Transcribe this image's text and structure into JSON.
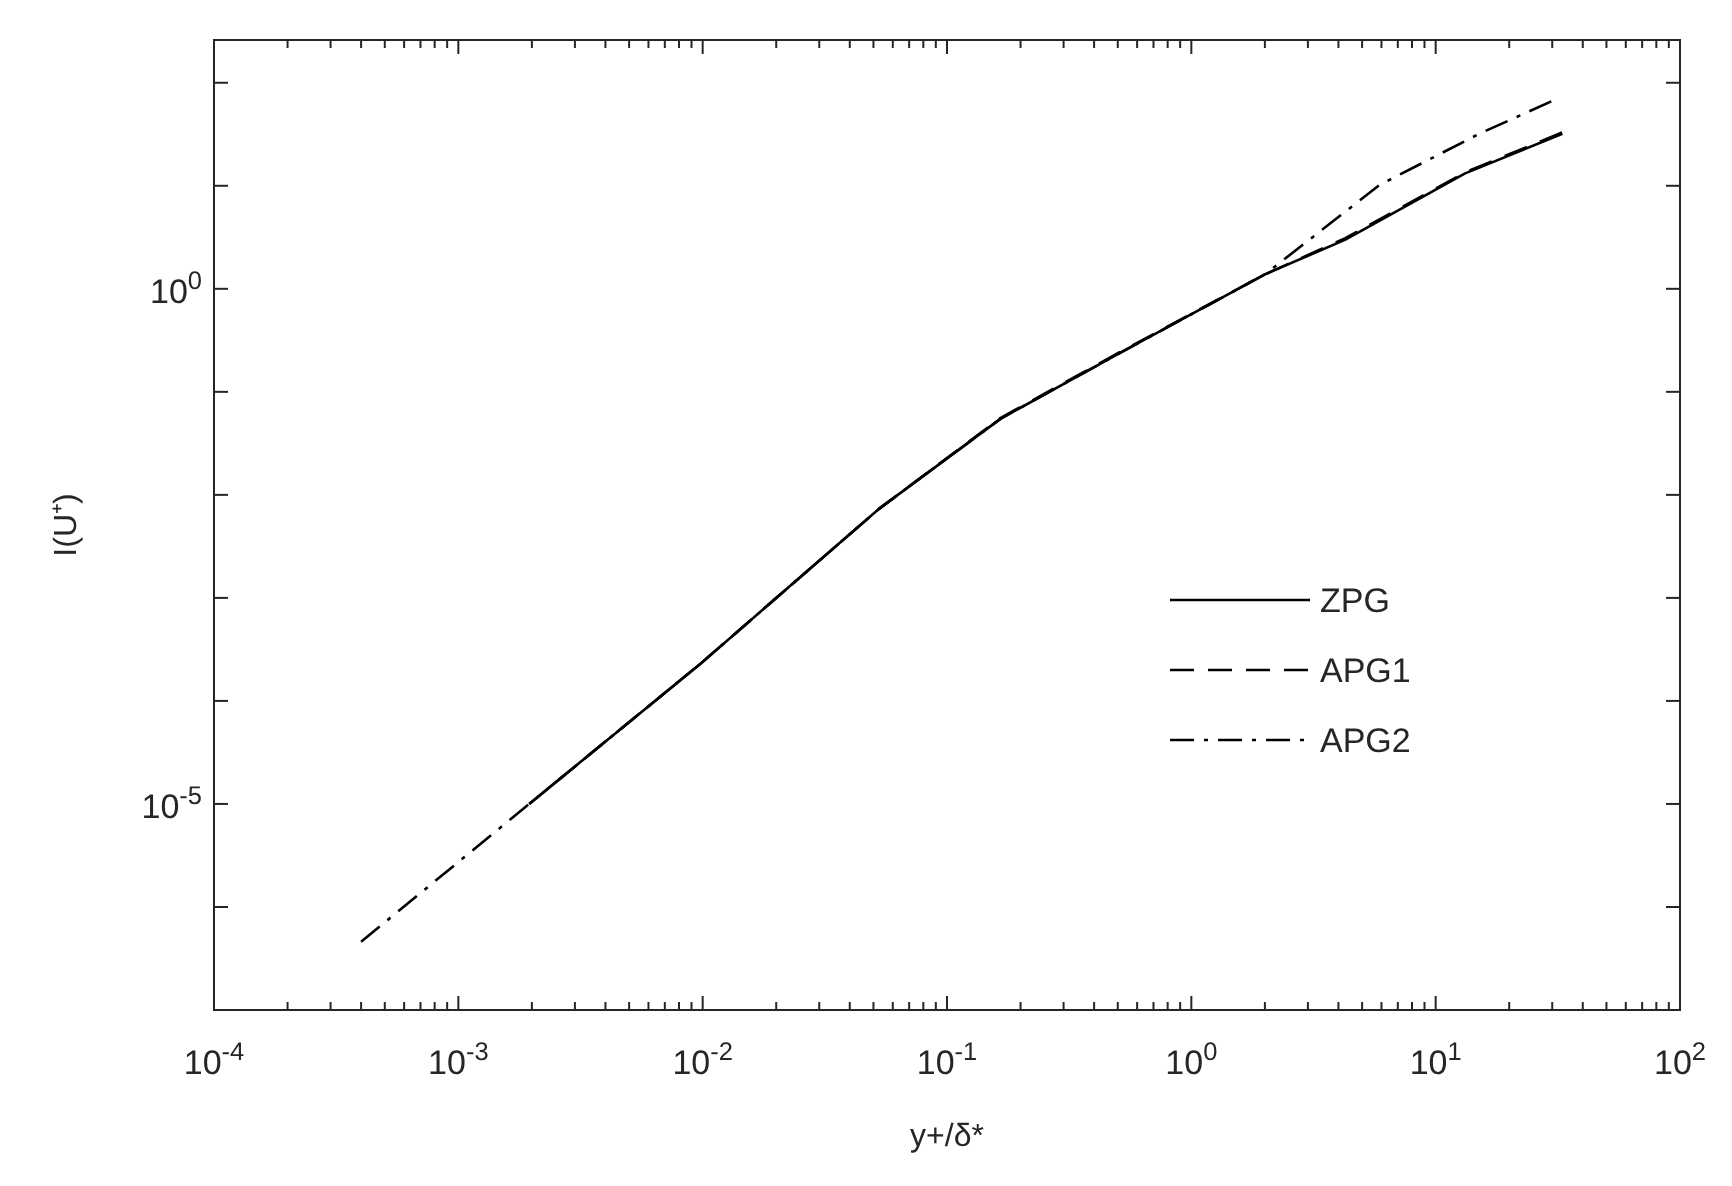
{
  "chart_data": {
    "type": "line",
    "xlabel": "y+/δ*",
    "ylabel": "I(U⁺)",
    "log": "xy",
    "grid": false,
    "legend": "right",
    "xlim": [
      0.0001,
      100
    ],
    "ylim": [
      1e-07,
      260
    ],
    "xticks": [
      {
        "value": 0.0001,
        "label": "10$^{-4}$"
      },
      {
        "value": 0.001,
        "label": "10$^{-3}$"
      },
      {
        "value": 0.01,
        "label": "10$^{-2}$"
      },
      {
        "value": 0.1,
        "label": "10$^{-1}$"
      },
      {
        "value": 1,
        "label": "10$^{0}$"
      },
      {
        "value": 10,
        "label": "10$^{1}$"
      },
      {
        "value": 100,
        "label": "10$^{2}$"
      }
    ],
    "yticks": [
      {
        "value": 1e-06,
        "label": null
      },
      {
        "value": 1e-05,
        "label": "10$^{-5}$"
      },
      {
        "value": 0.0001,
        "label": null
      },
      {
        "value": 0.001,
        "label": null
      },
      {
        "value": 0.01,
        "label": null
      },
      {
        "value": 0.1,
        "label": null
      },
      {
        "value": 1,
        "label": "10$^{0}$"
      },
      {
        "value": 10,
        "label": null
      },
      {
        "value": 100,
        "label": null
      }
    ],
    "series": [
      {
        "name": "ZPG",
        "color": "#000000",
        "line_style": "solid",
        "x": [
          0.00195,
          0.0098,
          0.053,
          0.166,
          0.513,
          2.0,
          4.27,
          13.2,
          33
        ],
        "values": [
          1e-05,
          0.00023,
          0.0074,
          0.055,
          0.24,
          1.38,
          3.0,
          13.2,
          32
        ]
      },
      {
        "name": "APG1",
        "color": "#000000",
        "line_style": "dashed",
        "x": [
          0.00195,
          0.0098,
          0.053,
          0.166,
          0.513,
          2.0,
          4.27,
          13.2,
          33
        ],
        "values": [
          1e-05,
          0.00023,
          0.0074,
          0.056,
          0.245,
          1.38,
          3.1,
          13.5,
          33
        ]
      },
      {
        "name": "APG2",
        "color": "#000000",
        "line_style": "dashdot",
        "x": [
          0.0004,
          0.00195,
          0.0098,
          0.053,
          0.166,
          0.513,
          2.0,
          5.9,
          15.1,
          31
        ],
        "values": [
          4.6e-07,
          1e-05,
          0.00023,
          0.0074,
          0.055,
          0.24,
          1.38,
          10.2,
          32,
          69
        ]
      }
    ]
  }
}
